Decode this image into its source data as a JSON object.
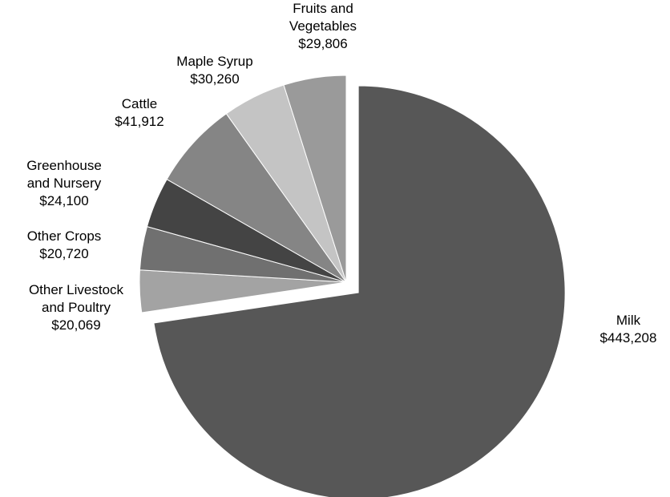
{
  "chart_data": {
    "type": "pie",
    "title": "",
    "slices": [
      {
        "label_lines": [
          "Milk"
        ],
        "value_text": "$443,208",
        "value": 443208,
        "color": "#575757",
        "exploded": true
      },
      {
        "label_lines": [
          "Other Livestock",
          "and Poultry"
        ],
        "value_text": "$20,069",
        "value": 20069,
        "color": "#a3a3a3",
        "exploded": false
      },
      {
        "label_lines": [
          "Other Crops"
        ],
        "value_text": "$20,720",
        "value": 20720,
        "color": "#707070",
        "exploded": false
      },
      {
        "label_lines": [
          "Greenhouse",
          "and Nursery"
        ],
        "value_text": "$24,100",
        "value": 24100,
        "color": "#444444",
        "exploded": false
      },
      {
        "label_lines": [
          "Cattle"
        ],
        "value_text": "$41,912",
        "value": 41912,
        "color": "#858585",
        "exploded": false
      },
      {
        "label_lines": [
          "Maple Syrup"
        ],
        "value_text": "$30,260",
        "value": 30260,
        "color": "#c4c4c4",
        "exploded": false
      },
      {
        "label_lines": [
          "Fruits and",
          "Vegetables"
        ],
        "value_text": "$29,806",
        "value": 29806,
        "color": "#9a9a9a",
        "exploded": false
      }
    ]
  }
}
